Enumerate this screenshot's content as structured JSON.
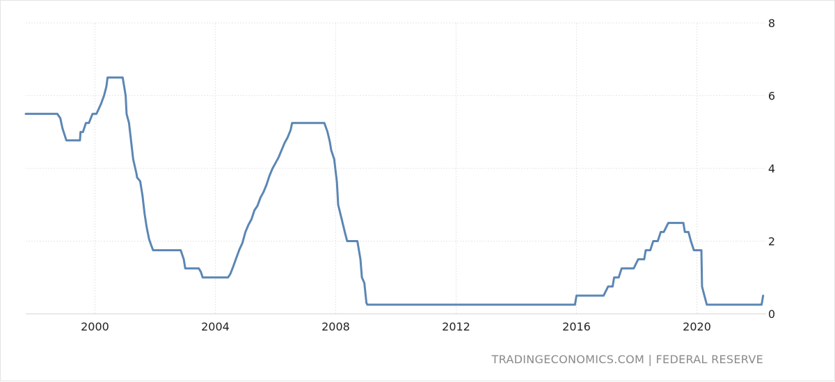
{
  "chart_data": {
    "type": "line",
    "title": "",
    "xlabel": "",
    "ylabel": "",
    "x_range": [
      1997.7,
      2022.3
    ],
    "ylim": [
      0,
      8
    ],
    "x_ticks": [
      "2000",
      "2004",
      "2008",
      "2012",
      "2016",
      "2020"
    ],
    "y_ticks": [
      "0",
      "2",
      "4",
      "6",
      "8"
    ],
    "grid": true,
    "line_color": "#5b86b4",
    "series": [
      {
        "values": [
          [
            1997.7,
            5.5
          ],
          [
            1998.75,
            5.5
          ],
          [
            1998.85,
            5.38
          ],
          [
            1998.92,
            5.1
          ],
          [
            1999.05,
            4.77
          ],
          [
            1999.5,
            4.77
          ],
          [
            1999.52,
            5.0
          ],
          [
            1999.6,
            5.0
          ],
          [
            1999.7,
            5.25
          ],
          [
            1999.8,
            5.25
          ],
          [
            1999.92,
            5.5
          ],
          [
            2000.05,
            5.5
          ],
          [
            2000.2,
            5.77
          ],
          [
            2000.3,
            6.0
          ],
          [
            2000.38,
            6.25
          ],
          [
            2000.42,
            6.5
          ],
          [
            2000.92,
            6.5
          ],
          [
            2001.02,
            6.0
          ],
          [
            2001.05,
            5.5
          ],
          [
            2001.13,
            5.25
          ],
          [
            2001.2,
            4.75
          ],
          [
            2001.27,
            4.25
          ],
          [
            2001.38,
            3.85
          ],
          [
            2001.4,
            3.75
          ],
          [
            2001.5,
            3.65
          ],
          [
            2001.58,
            3.25
          ],
          [
            2001.65,
            2.75
          ],
          [
            2001.72,
            2.37
          ],
          [
            2001.8,
            2.05
          ],
          [
            2001.87,
            1.88
          ],
          [
            2001.93,
            1.75
          ],
          [
            2002.85,
            1.75
          ],
          [
            2002.95,
            1.5
          ],
          [
            2003.0,
            1.25
          ],
          [
            2003.45,
            1.25
          ],
          [
            2003.52,
            1.15
          ],
          [
            2003.58,
            1.0
          ],
          [
            2004.42,
            1.0
          ],
          [
            2004.5,
            1.1
          ],
          [
            2004.58,
            1.27
          ],
          [
            2004.68,
            1.5
          ],
          [
            2004.8,
            1.77
          ],
          [
            2004.9,
            1.95
          ],
          [
            2005.0,
            2.25
          ],
          [
            2005.1,
            2.45
          ],
          [
            2005.2,
            2.6
          ],
          [
            2005.3,
            2.85
          ],
          [
            2005.4,
            2.97
          ],
          [
            2005.5,
            3.2
          ],
          [
            2005.6,
            3.35
          ],
          [
            2005.7,
            3.55
          ],
          [
            2005.8,
            3.8
          ],
          [
            2005.9,
            4.0
          ],
          [
            2006.0,
            4.15
          ],
          [
            2006.1,
            4.3
          ],
          [
            2006.2,
            4.5
          ],
          [
            2006.3,
            4.7
          ],
          [
            2006.4,
            4.85
          ],
          [
            2006.5,
            5.05
          ],
          [
            2006.55,
            5.25
          ],
          [
            2007.62,
            5.25
          ],
          [
            2007.72,
            5.02
          ],
          [
            2007.8,
            4.75
          ],
          [
            2007.85,
            4.5
          ],
          [
            2007.95,
            4.25
          ],
          [
            2008.04,
            3.62
          ],
          [
            2008.08,
            3.0
          ],
          [
            2008.2,
            2.6
          ],
          [
            2008.3,
            2.25
          ],
          [
            2008.38,
            2.0
          ],
          [
            2008.72,
            2.0
          ],
          [
            2008.82,
            1.5
          ],
          [
            2008.87,
            1.0
          ],
          [
            2008.95,
            0.85
          ],
          [
            2009.02,
            0.3
          ],
          [
            2009.05,
            0.25
          ],
          [
            2015.95,
            0.25
          ],
          [
            2016.0,
            0.5
          ],
          [
            2016.9,
            0.5
          ],
          [
            2017.05,
            0.75
          ],
          [
            2017.2,
            0.75
          ],
          [
            2017.25,
            1.0
          ],
          [
            2017.4,
            1.0
          ],
          [
            2017.5,
            1.25
          ],
          [
            2017.9,
            1.25
          ],
          [
            2018.05,
            1.5
          ],
          [
            2018.25,
            1.5
          ],
          [
            2018.3,
            1.75
          ],
          [
            2018.45,
            1.75
          ],
          [
            2018.55,
            2.0
          ],
          [
            2018.7,
            2.0
          ],
          [
            2018.8,
            2.25
          ],
          [
            2018.9,
            2.25
          ],
          [
            2019.05,
            2.5
          ],
          [
            2019.55,
            2.5
          ],
          [
            2019.6,
            2.25
          ],
          [
            2019.72,
            2.25
          ],
          [
            2019.8,
            2.0
          ],
          [
            2019.9,
            1.75
          ],
          [
            2020.15,
            1.75
          ],
          [
            2020.17,
            0.75
          ],
          [
            2020.25,
            0.5
          ],
          [
            2020.33,
            0.25
          ],
          [
            2022.15,
            0.25
          ],
          [
            2022.2,
            0.5
          ]
        ]
      }
    ],
    "source_text": "TRADINGECONOMICS.COM | FEDERAL RESERVE"
  }
}
